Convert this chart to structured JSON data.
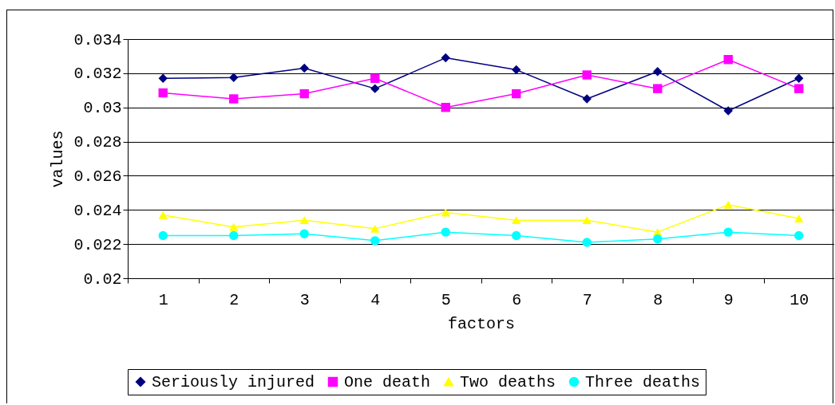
{
  "chart_data": {
    "type": "line",
    "xlabel": "factors",
    "ylabel": "values",
    "categories": [
      "1",
      "2",
      "3",
      "4",
      "5",
      "6",
      "7",
      "8",
      "9",
      "10"
    ],
    "ylim": [
      0.02,
      0.034
    ],
    "yticks": [
      0.02,
      0.022,
      0.024,
      0.026,
      0.028,
      0.03,
      0.032,
      0.034
    ],
    "grid": "y",
    "legend": "bottom",
    "series": [
      {
        "name": "Seriously injured",
        "color": "#000080",
        "marker": "diamond",
        "values": [
          0.0317,
          0.03175,
          0.0323,
          0.0311,
          0.0329,
          0.0322,
          0.0305,
          0.0321,
          0.0298,
          0.0317
        ]
      },
      {
        "name": "One death",
        "color": "#ff00ff",
        "marker": "square",
        "values": [
          0.03085,
          0.0305,
          0.0308,
          0.0317,
          0.03,
          0.0308,
          0.0319,
          0.0311,
          0.0328,
          0.0311
        ]
      },
      {
        "name": "Two deaths",
        "color": "#ffff00",
        "marker": "triangle",
        "values": [
          0.0237,
          0.023,
          0.0234,
          0.0229,
          0.02385,
          0.0234,
          0.0234,
          0.0227,
          0.0243,
          0.0235
        ]
      },
      {
        "name": "Three deaths",
        "color": "#00ffff",
        "marker": "circle",
        "values": [
          0.0225,
          0.0225,
          0.0226,
          0.0222,
          0.0227,
          0.0225,
          0.0221,
          0.0223,
          0.0227,
          0.0225
        ]
      }
    ]
  }
}
